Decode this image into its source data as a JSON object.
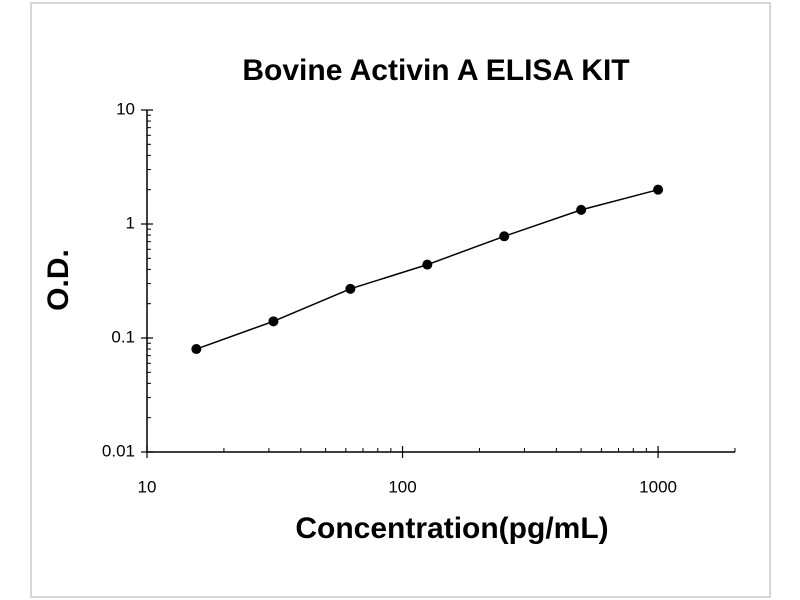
{
  "chart_data": {
    "type": "line",
    "title": "Bovine Activin A ELISA KIT",
    "x_label": "Concentration(pg/mL)",
    "y_label": "O.D.",
    "x": [
      15.6,
      31.25,
      62.5,
      125,
      250,
      500,
      1000
    ],
    "series": [
      {
        "color": "#000000",
        "values": [
          0.08,
          0.14,
          0.27,
          0.44,
          0.78,
          1.33,
          2.0
        ]
      }
    ],
    "xlim": [
      10,
      2000
    ],
    "ylim": [
      0.01,
      10
    ],
    "xlog": true,
    "ylog": true,
    "xticks": [
      10,
      100,
      1000
    ],
    "yticks": [
      0.01,
      0.1,
      1,
      10
    ],
    "xminorticks": [
      20,
      30,
      40,
      50,
      60,
      70,
      80,
      90,
      200,
      300,
      400,
      500,
      600,
      700,
      800,
      900,
      2000
    ],
    "yminorticks": [
      0.02,
      0.03,
      0.04,
      0.05,
      0.06,
      0.07,
      0.08,
      0.09,
      0.2,
      0.3,
      0.4,
      0.5,
      0.6,
      0.7,
      0.8,
      0.9,
      2,
      3,
      4,
      5,
      6,
      7,
      8,
      9
    ],
    "grid": false
  }
}
